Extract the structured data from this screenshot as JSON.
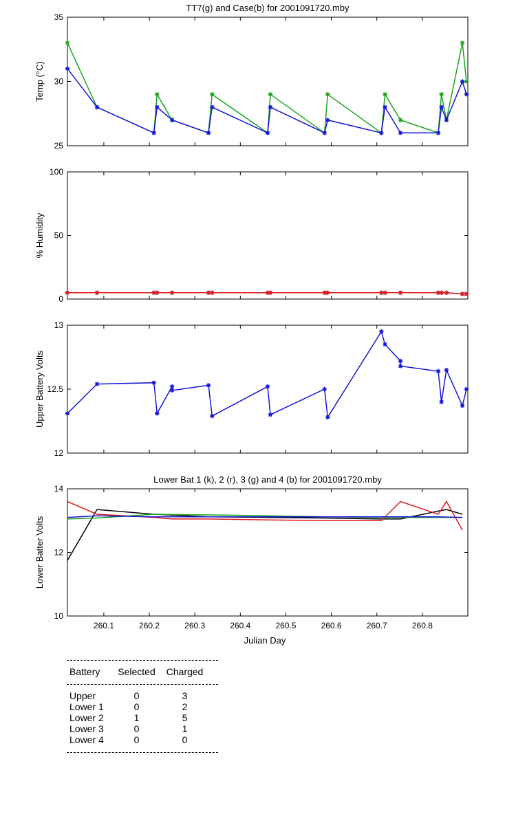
{
  "chart_data": [
    {
      "type": "line",
      "title": "TT7(g) and Case(b) for 2001091720.mby",
      "xlabel": "",
      "ylabel": "Temp  (°C)",
      "xlim": [
        260.02,
        260.9
      ],
      "ylim": [
        25,
        35
      ],
      "yticks": [
        "25",
        "30",
        "35"
      ],
      "xticks": [],
      "series": [
        {
          "color": "#1ba51b",
          "markers": true,
          "points": [
            [
              260.02,
              33
            ],
            [
              260.085,
              28
            ],
            [
              260.21,
              26
            ],
            [
              260.217,
              29
            ],
            [
              260.25,
              27
            ],
            [
              260.33,
              26
            ],
            [
              260.338,
              29
            ],
            [
              260.46,
              26
            ],
            [
              260.466,
              29
            ],
            [
              260.585,
              26
            ],
            [
              260.592,
              29
            ],
            [
              260.71,
              26
            ],
            [
              260.718,
              29
            ],
            [
              260.752,
              27
            ],
            [
              260.835,
              26
            ],
            [
              260.842,
              29
            ],
            [
              260.853,
              27
            ],
            [
              260.888,
              33
            ],
            [
              260.897,
              30
            ]
          ]
        },
        {
          "color": "#1515d8",
          "markers": true,
          "points": [
            [
              260.02,
              31
            ],
            [
              260.085,
              28
            ],
            [
              260.21,
              26
            ],
            [
              260.217,
              28
            ],
            [
              260.25,
              27
            ],
            [
              260.33,
              26
            ],
            [
              260.338,
              28
            ],
            [
              260.46,
              26
            ],
            [
              260.466,
              28
            ],
            [
              260.585,
              26
            ],
            [
              260.592,
              27
            ],
            [
              260.71,
              26
            ],
            [
              260.718,
              28
            ],
            [
              260.752,
              26
            ],
            [
              260.835,
              26
            ],
            [
              260.842,
              28
            ],
            [
              260.853,
              27
            ],
            [
              260.888,
              30
            ],
            [
              260.897,
              29
            ]
          ]
        }
      ]
    },
    {
      "type": "line",
      "title": "",
      "xlabel": "",
      "ylabel": "% Humidity",
      "xlim": [
        260.02,
        260.9
      ],
      "ylim": [
        0,
        100
      ],
      "yticks": [
        "0",
        "50",
        "100"
      ],
      "xticks": [],
      "series": [
        {
          "color": "#1515d8",
          "markers": true,
          "points": [
            [
              260.02,
              5
            ],
            [
              260.085,
              5
            ],
            [
              260.21,
              5
            ],
            [
              260.217,
              5
            ],
            [
              260.25,
              5
            ],
            [
              260.33,
              5
            ],
            [
              260.338,
              5
            ],
            [
              260.46,
              5
            ],
            [
              260.466,
              5
            ],
            [
              260.585,
              5
            ],
            [
              260.592,
              5
            ],
            [
              260.71,
              5
            ],
            [
              260.718,
              5
            ],
            [
              260.752,
              5
            ],
            [
              260.835,
              5
            ],
            [
              260.842,
              5
            ],
            [
              260.853,
              5
            ],
            [
              260.888,
              4
            ],
            [
              260.897,
              4
            ]
          ]
        },
        {
          "color": "#e01b1b",
          "markers": true,
          "points": [
            [
              260.02,
              5
            ],
            [
              260.085,
              5
            ],
            [
              260.21,
              5
            ],
            [
              260.217,
              5
            ],
            [
              260.25,
              5
            ],
            [
              260.33,
              5
            ],
            [
              260.338,
              5
            ],
            [
              260.46,
              5
            ],
            [
              260.466,
              5
            ],
            [
              260.585,
              5
            ],
            [
              260.592,
              5
            ],
            [
              260.71,
              5
            ],
            [
              260.718,
              5
            ],
            [
              260.752,
              5
            ],
            [
              260.835,
              5
            ],
            [
              260.842,
              5
            ],
            [
              260.853,
              5
            ],
            [
              260.888,
              4
            ],
            [
              260.897,
              4
            ]
          ]
        }
      ]
    },
    {
      "type": "line",
      "title": "",
      "xlabel": "",
      "ylabel": "Upper Battery Volts",
      "xlim": [
        260.02,
        260.9
      ],
      "ylim": [
        12,
        13
      ],
      "yticks": [
        "12",
        "12.5",
        "13"
      ],
      "xticks": [],
      "series": [
        {
          "color": "#1515d8",
          "markers": true,
          "points": [
            [
              260.02,
              12.31
            ],
            [
              260.085,
              12.54
            ],
            [
              260.21,
              12.55
            ],
            [
              260.217,
              12.31
            ],
            [
              260.25,
              12.52
            ],
            [
              260.25,
              12.49
            ],
            [
              260.33,
              12.53
            ],
            [
              260.338,
              12.29
            ],
            [
              260.46,
              12.52
            ],
            [
              260.466,
              12.3
            ],
            [
              260.585,
              12.5
            ],
            [
              260.592,
              12.28
            ],
            [
              260.71,
              12.95
            ],
            [
              260.718,
              12.85
            ],
            [
              260.752,
              12.72
            ],
            [
              260.752,
              12.68
            ],
            [
              260.835,
              12.64
            ],
            [
              260.842,
              12.4
            ],
            [
              260.853,
              12.65
            ],
            [
              260.888,
              12.37
            ],
            [
              260.897,
              12.5
            ]
          ]
        }
      ]
    },
    {
      "type": "line",
      "title": "Lower Bat 1 (k), 2 (r), 3 (g) and 4 (b) for 2001091720.mby",
      "xlabel": "Julian Day",
      "ylabel": "Lower Batter Volts",
      "xlim": [
        260.02,
        260.9
      ],
      "ylim": [
        10,
        14
      ],
      "yticks": [
        "10",
        "12",
        "14"
      ],
      "xticks": [
        "260.1",
        "260.2",
        "260.3",
        "260.4",
        "260.5",
        "260.6",
        "260.7",
        "260.8"
      ],
      "series": [
        {
          "color": "#000000",
          "markers": false,
          "points": [
            [
              260.02,
              11.75
            ],
            [
              260.085,
              13.35
            ],
            [
              260.21,
              13.2
            ],
            [
              260.33,
              13.12
            ],
            [
              260.46,
              13.1
            ],
            [
              260.585,
              13.08
            ],
            [
              260.71,
              13.05
            ],
            [
              260.752,
              13.05
            ],
            [
              260.835,
              13.3
            ],
            [
              260.853,
              13.35
            ],
            [
              260.888,
              13.2
            ]
          ]
        },
        {
          "color": "#e01b1b",
          "markers": false,
          "points": [
            [
              260.02,
              13.6
            ],
            [
              260.085,
              13.2
            ],
            [
              260.21,
              13.1
            ],
            [
              260.25,
              13.05
            ],
            [
              260.33,
              13.05
            ],
            [
              260.46,
              13.02
            ],
            [
              260.585,
              13.0
            ],
            [
              260.71,
              13.0
            ],
            [
              260.752,
              13.6
            ],
            [
              260.835,
              13.2
            ],
            [
              260.853,
              13.6
            ],
            [
              260.888,
              12.7
            ]
          ]
        },
        {
          "color": "#1ba51b",
          "markers": false,
          "points": [
            [
              260.02,
              13.05
            ],
            [
              260.085,
              13.08
            ],
            [
              260.21,
              13.2
            ],
            [
              260.33,
              13.18
            ],
            [
              260.46,
              13.15
            ],
            [
              260.585,
              13.12
            ],
            [
              260.71,
              13.1
            ],
            [
              260.835,
              13.1
            ],
            [
              260.888,
              13.1
            ]
          ]
        },
        {
          "color": "#1515d8",
          "markers": false,
          "points": [
            [
              260.02,
              13.1
            ],
            [
              260.085,
              13.15
            ],
            [
              260.21,
              13.12
            ],
            [
              260.33,
              13.12
            ],
            [
              260.46,
              13.12
            ],
            [
              260.585,
              13.12
            ],
            [
              260.71,
              13.12
            ],
            [
              260.835,
              13.12
            ],
            [
              260.888,
              13.1
            ]
          ]
        }
      ]
    }
  ],
  "summary": {
    "headers": [
      "Battery",
      "Selected",
      "Charged"
    ],
    "rows": [
      [
        "Upper",
        "0",
        "3"
      ],
      [
        "Lower 1",
        "0",
        "2"
      ],
      [
        "Lower 2",
        "1",
        "5"
      ],
      [
        "Lower 3",
        "0",
        "1"
      ],
      [
        "Lower 4",
        "0",
        "0"
      ]
    ]
  }
}
